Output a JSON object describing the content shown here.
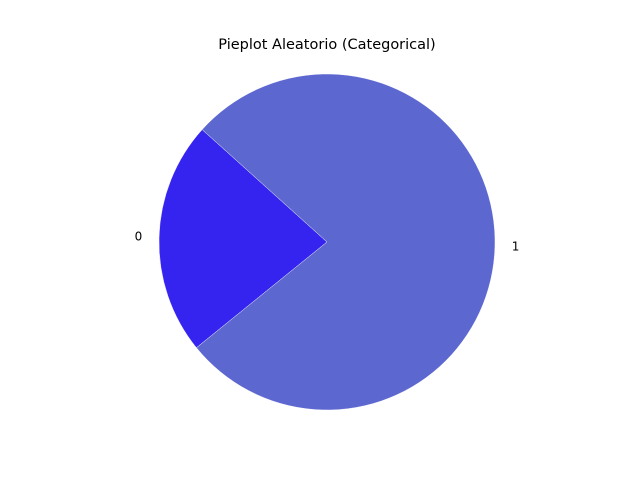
{
  "chart_data": {
    "type": "pie",
    "title": "Pieplot Aleatorio (Categorical)",
    "categories": [
      "0",
      "1"
    ],
    "values": [
      22.5,
      77.5
    ],
    "colors": [
      "#3523ef",
      "#5d67d0"
    ],
    "start_angle_degrees": 138,
    "direction": "counterclockwise",
    "legend": "none",
    "grid": false
  }
}
